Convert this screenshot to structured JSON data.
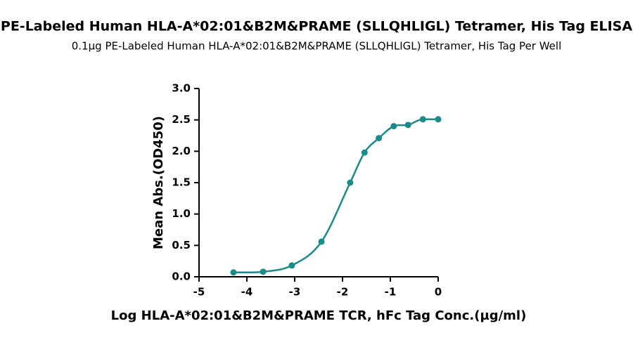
{
  "chart_data": {
    "type": "scatter",
    "title": "PE-Labeled Human HLA-A*02:01&B2M&PRAME (SLLQHLIGL) Tetramer, His Tag ELISA",
    "subtitle": "0.1µg PE-Labeled Human HLA-A*02:01&B2M&PRAME (SLLQHLIGL) Tetramer, His Tag Per Well",
    "x_label": "Log HLA-A*02:01&B2M&PRAME TCR, hFc Tag Conc.(µg/ml)",
    "y_label": "Mean Abs.(OD450)",
    "series": [
      {
        "color": "#1a8a8a",
        "x": [
          -4.28,
          -3.66,
          -3.06,
          -2.44,
          -1.84,
          -1.54,
          -1.24,
          -0.93,
          -0.63,
          -0.32,
          0
        ],
        "values": [
          0.07,
          0.08,
          0.18,
          0.56,
          1.5,
          1.98,
          2.21,
          2.4,
          2.42,
          2.51,
          2.51
        ]
      }
    ],
    "xlim": [
      -5,
      0
    ],
    "xticks": [
      -5,
      -4,
      -3,
      -2,
      -1,
      0
    ],
    "ylim": [
      0,
      3
    ],
    "yticks": [
      {
        "value": 0,
        "label": "0.0"
      },
      {
        "value": 0.5,
        "label": "0.5"
      },
      {
        "value": 1,
        "label": "1.0"
      },
      {
        "value": 1.5,
        "label": "1.5"
      },
      {
        "value": 2,
        "label": "2.0"
      },
      {
        "value": 2.5,
        "label": "2.5"
      },
      {
        "value": 3,
        "label": "3.0"
      }
    ]
  }
}
